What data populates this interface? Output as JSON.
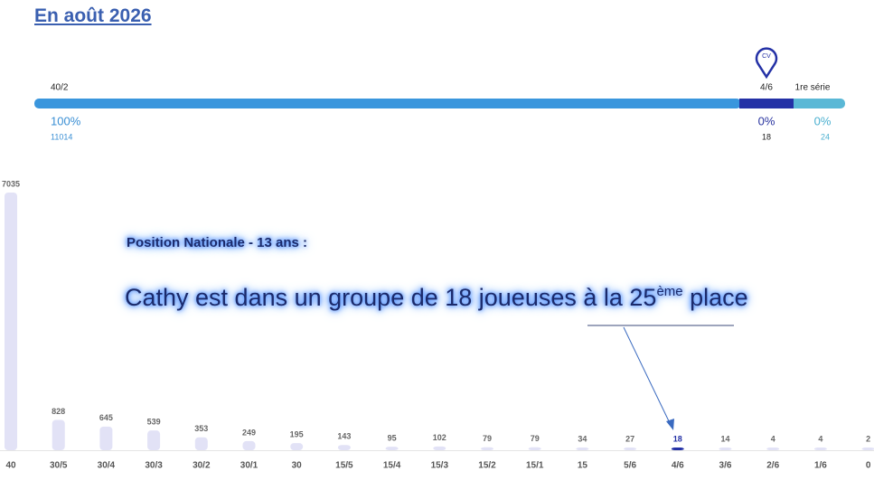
{
  "header": {
    "title": "En août 2026"
  },
  "progress": {
    "segments": [
      {
        "label": "40/2",
        "percent": "100%",
        "count": "11014"
      },
      {
        "label": "4/6",
        "marker": "CV",
        "percent": "0%",
        "count": "18"
      },
      {
        "label": "1re série",
        "percent": "0%",
        "count": "24"
      }
    ]
  },
  "annotation": {
    "subtitle": "Position Nationale - 13 ans :",
    "main": "Cathy est dans un groupe de 18 joueuses à la 25",
    "superscript": "ème",
    "main_end": " place"
  },
  "chart_data": {
    "type": "bar",
    "categories": [
      "40",
      "30/5",
      "30/4",
      "30/3",
      "30/2",
      "30/1",
      "30",
      "15/5",
      "15/4",
      "15/3",
      "15/2",
      "15/1",
      "15",
      "5/6",
      "4/6",
      "3/6",
      "2/6",
      "1/6",
      "0"
    ],
    "values": [
      7035,
      828,
      645,
      539,
      353,
      249,
      195,
      143,
      95,
      102,
      79,
      79,
      34,
      27,
      18,
      14,
      4,
      4,
      2
    ],
    "color": "#e2e2f6",
    "highlight_color": "#2431a6",
    "highlight_index": 14,
    "ylim": [
      0,
      7035
    ]
  }
}
